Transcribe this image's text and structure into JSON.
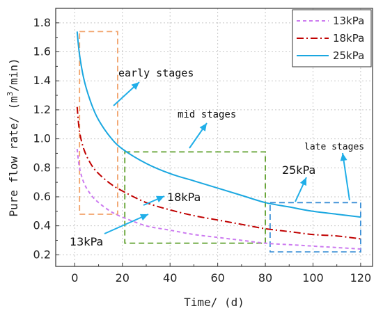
{
  "chart_data": {
    "type": "line",
    "xlabel": "Time/ (d)",
    "ylabel_prefix": "Pure flow rate/ (m",
    "ylabel_sup": "3",
    "ylabel_suffix": "/min)",
    "xlim": [
      -8,
      125
    ],
    "ylim": [
      0.12,
      1.9
    ],
    "xticks": [
      0,
      20,
      40,
      60,
      80,
      100,
      120
    ],
    "yticks": [
      0.2,
      0.4,
      0.6,
      0.8,
      1.0,
      1.2,
      1.4,
      1.6,
      1.8
    ],
    "ytick_labels": [
      "0.2",
      "0.4",
      "0.6",
      "0.8",
      "1.0",
      "1.2",
      "1.4",
      "1.6",
      "1.8"
    ],
    "grid": true,
    "legend_position": "top-right",
    "series": [
      {
        "name": "13kPa",
        "color": "#cc7af0",
        "dash": "dash",
        "x": [
          1,
          2,
          4,
          7,
          10,
          15,
          20,
          30,
          40,
          50,
          60,
          70,
          80,
          90,
          100,
          110,
          120
        ],
        "y": [
          0.93,
          0.8,
          0.69,
          0.61,
          0.56,
          0.5,
          0.46,
          0.4,
          0.37,
          0.34,
          0.32,
          0.3,
          0.28,
          0.27,
          0.26,
          0.25,
          0.24
        ]
      },
      {
        "name": "18kPa",
        "color": "#c00000",
        "dash": "dashdot",
        "x": [
          1,
          2,
          4,
          7,
          10,
          15,
          20,
          30,
          40,
          50,
          60,
          70,
          80,
          90,
          100,
          110,
          120
        ],
        "y": [
          1.22,
          1.05,
          0.92,
          0.82,
          0.76,
          0.69,
          0.64,
          0.56,
          0.51,
          0.47,
          0.44,
          0.41,
          0.38,
          0.36,
          0.34,
          0.33,
          0.31
        ]
      },
      {
        "name": "25kPa",
        "color": "#1aa7e0",
        "dash": "solid",
        "x": [
          1,
          2,
          4,
          7,
          10,
          15,
          20,
          30,
          40,
          50,
          60,
          70,
          80,
          90,
          100,
          110,
          120
        ],
        "y": [
          1.74,
          1.58,
          1.4,
          1.24,
          1.13,
          1.01,
          0.93,
          0.83,
          0.76,
          0.71,
          0.66,
          0.61,
          0.56,
          0.53,
          0.5,
          0.48,
          0.46
        ]
      }
    ],
    "stage_boxes": [
      {
        "label": "early stages",
        "color": "#f2a36b",
        "x": [
          2,
          18
        ],
        "y": [
          0.48,
          1.74
        ]
      },
      {
        "label": "mid stages",
        "color": "#5fa02d",
        "x": [
          21,
          80
        ],
        "y": [
          0.28,
          0.91
        ]
      },
      {
        "label": "late stages",
        "color": "#3a8fd6",
        "x": [
          82,
          120
        ],
        "y": [
          0.22,
          0.56
        ]
      }
    ],
    "annotations": [
      {
        "text": "early stages",
        "style": "mono",
        "size": 15
      },
      {
        "text": "mid stages",
        "style": "mono",
        "size": 14
      },
      {
        "text": "late stages",
        "style": "mono",
        "size": 13
      },
      {
        "text": "25kPa",
        "style": "bold",
        "size": 16
      },
      {
        "text": "18kPa",
        "style": "bold",
        "size": 16
      },
      {
        "text": "13kPa",
        "style": "bold",
        "size": 16
      }
    ]
  }
}
